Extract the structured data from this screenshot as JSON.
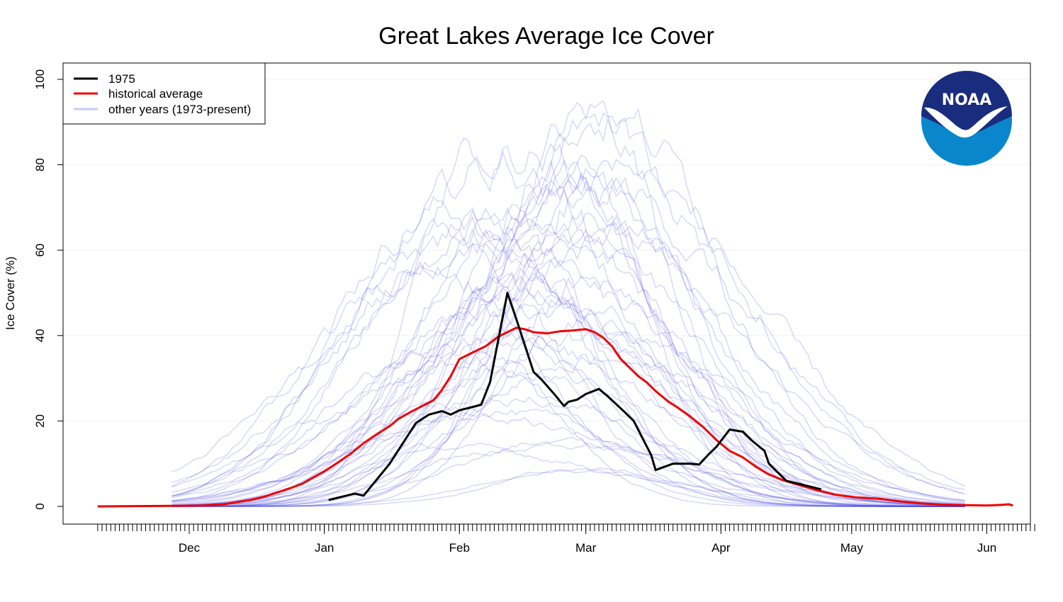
{
  "chart_data": {
    "type": "line",
    "title": "Great Lakes Average Ice Cover",
    "ylabel": "Ice Cover (%)",
    "xlabel": "",
    "ylim": [
      0,
      100
    ],
    "yticks": [
      0,
      20,
      40,
      60,
      80,
      100
    ],
    "x_range_days": [
      -19,
      196
    ],
    "month_ticks": [
      {
        "label": "Dec",
        "day": 2
      },
      {
        "label": "Jan",
        "day": 33
      },
      {
        "label": "Feb",
        "day": 64
      },
      {
        "label": "Mar",
        "day": 93
      },
      {
        "label": "Apr",
        "day": 124
      },
      {
        "label": "May",
        "day": 154
      },
      {
        "label": "Jun",
        "day": 185
      }
    ],
    "grid": "horizontal",
    "legend": {
      "placement": "top-left",
      "entries": [
        {
          "label": "1975",
          "color": "#000000"
        },
        {
          "label": "historical average",
          "color": "#ee0000"
        },
        {
          "label": "other years (1973-present)",
          "color": "#c8c8f4"
        }
      ]
    },
    "logo": "noaa-logo",
    "series": [
      {
        "name": "1975",
        "color": "#000000",
        "x": [
          34,
          40,
          42,
          48,
          54,
          57,
          60,
          62,
          64,
          69,
          71,
          75,
          77,
          81,
          83,
          86,
          88,
          89,
          91,
          93,
          96,
          98,
          102,
          104,
          108,
          109,
          113,
          114,
          117,
          119,
          121,
          123,
          126,
          129,
          131,
          134,
          135,
          139,
          147
        ],
        "y": [
          1.5,
          3,
          2.5,
          10,
          19.5,
          21.5,
          22.3,
          21.5,
          22.5,
          23.8,
          29,
          50,
          44,
          31.5,
          29.5,
          26,
          23.5,
          24.5,
          25,
          26.3,
          27.5,
          25.8,
          22,
          20,
          12,
          8.5,
          10,
          10,
          10,
          9.8,
          12,
          14,
          18,
          17.5,
          15.5,
          13,
          10,
          6,
          4
        ]
      },
      {
        "name": "historical average",
        "color": "#ee0000",
        "x": [
          -19,
          -5,
          5,
          10,
          14,
          16,
          19,
          22,
          25,
          28,
          30,
          33,
          36,
          39,
          42,
          44,
          48,
          50,
          53,
          56,
          58,
          60,
          62,
          64,
          66,
          68,
          70,
          73,
          75,
          77,
          79,
          81,
          84,
          87,
          90,
          93,
          95,
          97,
          99,
          101,
          103,
          105,
          107,
          109,
          112,
          114,
          117,
          120,
          123,
          126,
          129,
          132,
          135,
          138,
          142,
          146,
          150,
          155,
          160,
          165,
          170,
          175,
          180,
          185,
          189,
          190,
          191
        ],
        "y": [
          0,
          0.1,
          0.2,
          0.5,
          1.2,
          1.5,
          2.2,
          3.2,
          4.2,
          5.3,
          6.5,
          8.2,
          10.2,
          12.3,
          14.8,
          16.2,
          18.8,
          20.5,
          22.2,
          23.8,
          24.8,
          27.3,
          30.5,
          34.5,
          35.5,
          36.5,
          37.5,
          39.8,
          40.8,
          41.8,
          41.5,
          40.8,
          40.5,
          41,
          41.2,
          41.5,
          40.8,
          39.5,
          37.5,
          34.5,
          32.5,
          30.5,
          29,
          27,
          24.5,
          23.2,
          21,
          18.5,
          15.5,
          13,
          11.5,
          9.3,
          7.5,
          6.2,
          5,
          3.8,
          2.8,
          2.1,
          1.8,
          1.2,
          0.7,
          0.4,
          0.3,
          0.2,
          0.4,
          0.5,
          0.2
        ]
      }
    ],
    "other_years_count": 45,
    "other_years_color": "#c8c8f4"
  }
}
